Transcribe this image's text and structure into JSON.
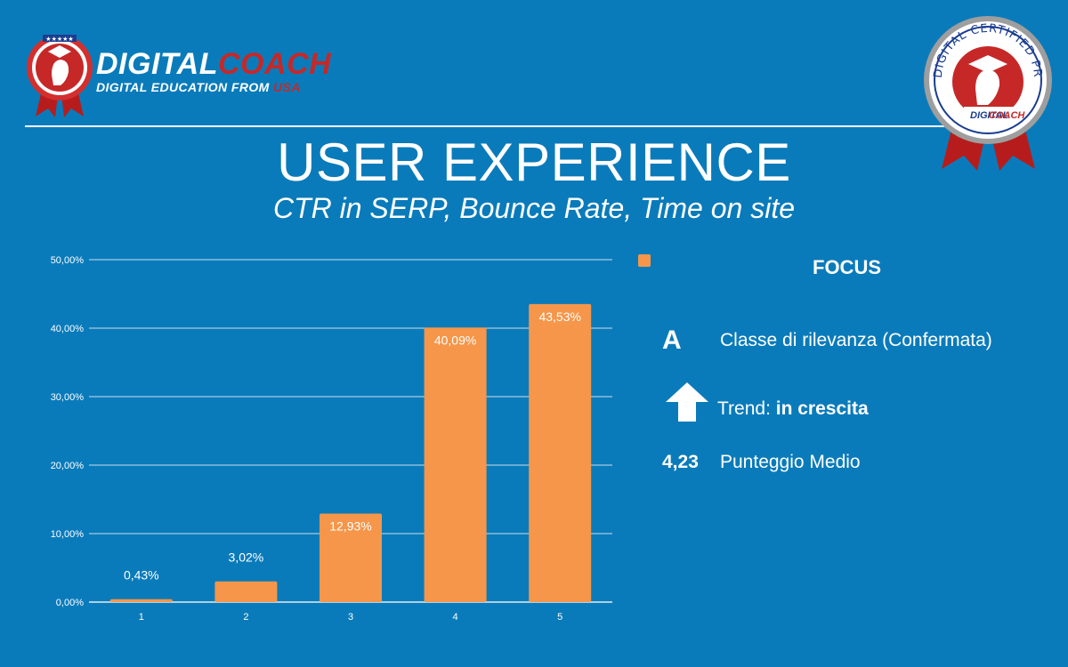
{
  "header": {
    "logo_brand_part1": "DIGITAL",
    "logo_brand_part2": "COACH",
    "logo_tagline_part1": "DIGITAL EDUCATION FROM ",
    "logo_tagline_part2": "USA",
    "seal_text": "DIGITAL CERTIFIED PROFESSIONAL",
    "seal_brand_part1": "DIGITAL",
    "seal_brand_part2": "COACH"
  },
  "title": "USER EXPERIENCE",
  "subtitle": "CTR in SERP, Bounce Rate, Time on site",
  "chart_data": {
    "type": "bar",
    "categories": [
      "1",
      "2",
      "3",
      "4",
      "5"
    ],
    "values": [
      0.43,
      3.02,
      12.93,
      40.09,
      43.53
    ],
    "value_labels": [
      "0,43%",
      "3,02%",
      "12,93%",
      "40,09%",
      "43,53%"
    ],
    "ylim": [
      0,
      50
    ],
    "yticks": [
      0,
      10,
      20,
      30,
      40,
      50
    ],
    "ytick_labels": [
      "0,00%",
      "10,00%",
      "20,00%",
      "30,00%",
      "40,00%",
      "50,00%"
    ],
    "grid": true,
    "bar_color": "#f5964a"
  },
  "focus_panel": {
    "heading": "FOCUS",
    "grade": "A",
    "grade_label": "Classe di rilevanza (Confermata)",
    "trend_prefix": "Trend: ",
    "trend_value": "in crescita",
    "trend_icon": "arrow-up-icon",
    "score": "4,23",
    "score_label": "Punteggio Medio"
  },
  "colors": {
    "background": "#0a7bba",
    "bar": "#f5964a",
    "brand_red": "#c62828"
  }
}
